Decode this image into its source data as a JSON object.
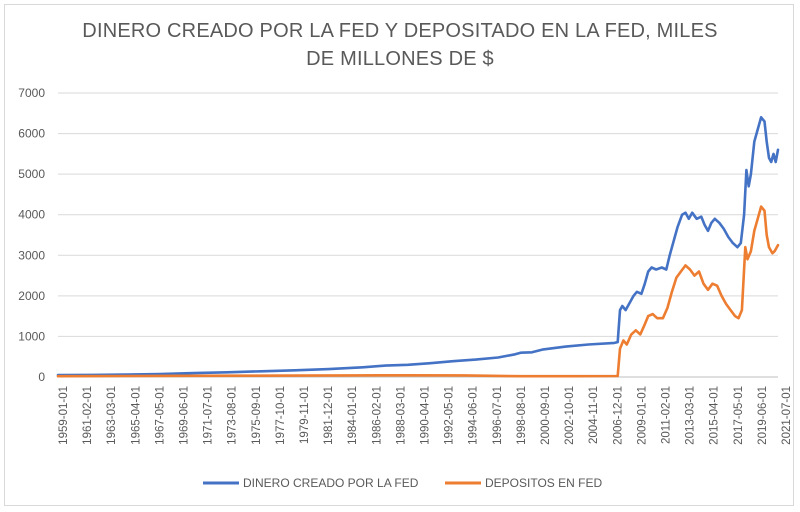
{
  "chart_data": {
    "type": "line",
    "title_line1": "DINERO CREADO POR LA FED Y DEPOSITADO EN LA FED, MILES",
    "title_line2": "DE MILLONES DE $",
    "ylim": [
      0,
      7000
    ],
    "yticks": [
      0,
      1000,
      2000,
      3000,
      4000,
      5000,
      6000,
      7000
    ],
    "grid": "horizontal",
    "legend_position": "bottom",
    "xtick_labels": [
      "1959-01-01",
      "1961-02-01",
      "1963-03-01",
      "1965-04-01",
      "1967-05-01",
      "1969-06-01",
      "1971-07-01",
      "1973-08-01",
      "1975-09-01",
      "1977-10-01",
      "1979-11-01",
      "1981-12-01",
      "1984-01-01",
      "1986-02-01",
      "1988-03-01",
      "1990-04-01",
      "1992-05-01",
      "1994-06-01",
      "1996-07-01",
      "1998-08-01",
      "2000-09-01",
      "2002-10-01",
      "2004-11-01",
      "2006-12-01",
      "2009-01-01",
      "2011-02-01",
      "2013-03-01",
      "2015-04-01",
      "2017-05-01",
      "2019-06-01",
      "2021-07-01"
    ],
    "x_range": [
      1959.0,
      2022.8
    ],
    "series": [
      {
        "name": "DINERO CREADO POR LA FED",
        "color": "#4472c4",
        "points": [
          [
            1959.0,
            50
          ],
          [
            1962,
            52
          ],
          [
            1965,
            60
          ],
          [
            1968,
            75
          ],
          [
            1971,
            95
          ],
          [
            1974,
            115
          ],
          [
            1977,
            140
          ],
          [
            1980,
            165
          ],
          [
            1983,
            195
          ],
          [
            1986,
            240
          ],
          [
            1988,
            280
          ],
          [
            1990,
            300
          ],
          [
            1992,
            340
          ],
          [
            1994,
            390
          ],
          [
            1996,
            430
          ],
          [
            1998,
            480
          ],
          [
            1999.5,
            560
          ],
          [
            2000,
            600
          ],
          [
            2001,
            610
          ],
          [
            2002,
            680
          ],
          [
            2004,
            750
          ],
          [
            2006,
            800
          ],
          [
            2008.3,
            840
          ],
          [
            2008.6,
            860
          ],
          [
            2008.8,
            1650
          ],
          [
            2009.0,
            1750
          ],
          [
            2009.3,
            1650
          ],
          [
            2009.7,
            1850
          ],
          [
            2010.0,
            2000
          ],
          [
            2010.3,
            2100
          ],
          [
            2010.7,
            2050
          ],
          [
            2011.0,
            2300
          ],
          [
            2011.3,
            2600
          ],
          [
            2011.6,
            2700
          ],
          [
            2012.0,
            2650
          ],
          [
            2012.5,
            2700
          ],
          [
            2012.9,
            2650
          ],
          [
            2013.2,
            3000
          ],
          [
            2013.6,
            3400
          ],
          [
            2013.9,
            3700
          ],
          [
            2014.3,
            4000
          ],
          [
            2014.6,
            4050
          ],
          [
            2014.9,
            3900
          ],
          [
            2015.2,
            4050
          ],
          [
            2015.6,
            3900
          ],
          [
            2016.0,
            3950
          ],
          [
            2016.3,
            3750
          ],
          [
            2016.6,
            3600
          ],
          [
            2016.9,
            3800
          ],
          [
            2017.2,
            3900
          ],
          [
            2017.6,
            3800
          ],
          [
            2018.0,
            3650
          ],
          [
            2018.4,
            3450
          ],
          [
            2018.8,
            3300
          ],
          [
            2019.2,
            3200
          ],
          [
            2019.5,
            3300
          ],
          [
            2019.8,
            4000
          ],
          [
            2020.0,
            5100
          ],
          [
            2020.2,
            4700
          ],
          [
            2020.4,
            5000
          ],
          [
            2020.7,
            5800
          ],
          [
            2021.0,
            6100
          ],
          [
            2021.3,
            6400
          ],
          [
            2021.6,
            6300
          ],
          [
            2021.8,
            5800
          ],
          [
            2022.0,
            5400
          ],
          [
            2022.2,
            5300
          ],
          [
            2022.4,
            5500
          ],
          [
            2022.6,
            5300
          ],
          [
            2022.8,
            5600
          ]
        ]
      },
      {
        "name": "DEPOSITOS EN FED",
        "color": "#ed7d31",
        "points": [
          [
            1959.0,
            20
          ],
          [
            1965,
            25
          ],
          [
            1970,
            30
          ],
          [
            1975,
            32
          ],
          [
            1980,
            35
          ],
          [
            1985,
            40
          ],
          [
            1990,
            42
          ],
          [
            1995,
            40
          ],
          [
            2000,
            20
          ],
          [
            2005,
            20
          ],
          [
            2008.6,
            25
          ],
          [
            2008.8,
            700
          ],
          [
            2009.1,
            900
          ],
          [
            2009.4,
            800
          ],
          [
            2009.8,
            1050
          ],
          [
            2010.2,
            1150
          ],
          [
            2010.6,
            1050
          ],
          [
            2011.0,
            1300
          ],
          [
            2011.3,
            1500
          ],
          [
            2011.7,
            1550
          ],
          [
            2012.1,
            1450
          ],
          [
            2012.6,
            1450
          ],
          [
            2013.0,
            1700
          ],
          [
            2013.4,
            2100
          ],
          [
            2013.8,
            2450
          ],
          [
            2014.2,
            2600
          ],
          [
            2014.6,
            2750
          ],
          [
            2015.0,
            2650
          ],
          [
            2015.4,
            2500
          ],
          [
            2015.8,
            2600
          ],
          [
            2016.2,
            2300
          ],
          [
            2016.6,
            2150
          ],
          [
            2017.0,
            2300
          ],
          [
            2017.4,
            2250
          ],
          [
            2017.8,
            2000
          ],
          [
            2018.2,
            1800
          ],
          [
            2018.6,
            1650
          ],
          [
            2019.0,
            1500
          ],
          [
            2019.3,
            1450
          ],
          [
            2019.6,
            1650
          ],
          [
            2019.9,
            3200
          ],
          [
            2020.1,
            2900
          ],
          [
            2020.4,
            3100
          ],
          [
            2020.7,
            3600
          ],
          [
            2021.0,
            3900
          ],
          [
            2021.3,
            4200
          ],
          [
            2021.6,
            4100
          ],
          [
            2021.8,
            3500
          ],
          [
            2022.0,
            3200
          ],
          [
            2022.3,
            3050
          ],
          [
            2022.5,
            3100
          ],
          [
            2022.8,
            3250
          ]
        ]
      }
    ]
  }
}
